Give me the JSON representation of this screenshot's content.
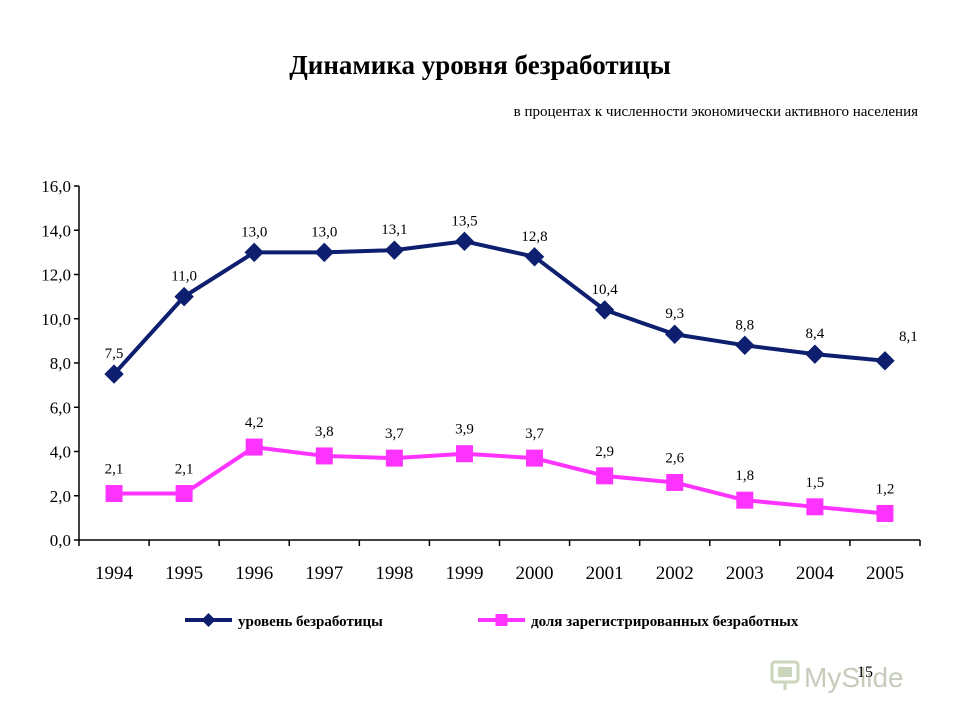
{
  "title": "Динамика уровня безработицы",
  "subtitle": "в процентах к численности экономически активного населения",
  "page_number": "15",
  "watermark_text": "MySlide",
  "colors": {
    "series1": "#0d1f6e",
    "series2": "#ff33ff",
    "axis": "#000000"
  },
  "chart_data": {
    "type": "line",
    "categories": [
      "1994",
      "1995",
      "1996",
      "1997",
      "1998",
      "1999",
      "2000",
      "2001",
      "2002",
      "2003",
      "2004",
      "2005"
    ],
    "ylim": [
      0,
      16
    ],
    "y_ticks": [
      "0,0",
      "2,0",
      "4,0",
      "6,0",
      "8,0",
      "10,0",
      "12,0",
      "14,0",
      "16,0"
    ],
    "grid": false,
    "legend": "bottom",
    "series": [
      {
        "name": "уровень безработицы",
        "marker": "diamond",
        "values": [
          7.5,
          11.0,
          13.0,
          13.0,
          13.1,
          13.5,
          12.8,
          10.4,
          9.3,
          8.8,
          8.4,
          8.1
        ],
        "labels": [
          "7,5",
          "11,0",
          "13,0",
          "13,0",
          "13,1",
          "13,5",
          "12,8",
          "10,4",
          "9,3",
          "8,8",
          "8,4",
          "8,1"
        ]
      },
      {
        "name": "доля зарегистрированных безработных",
        "marker": "square",
        "values": [
          2.1,
          2.1,
          4.2,
          3.8,
          3.7,
          3.9,
          3.7,
          2.9,
          2.6,
          1.8,
          1.5,
          1.2
        ],
        "labels": [
          "2,1",
          "2,1",
          "4,2",
          "3,8",
          "3,7",
          "3,9",
          "3,7",
          "2,9",
          "2,6",
          "1,8",
          "1,5",
          "1,2"
        ]
      }
    ]
  }
}
